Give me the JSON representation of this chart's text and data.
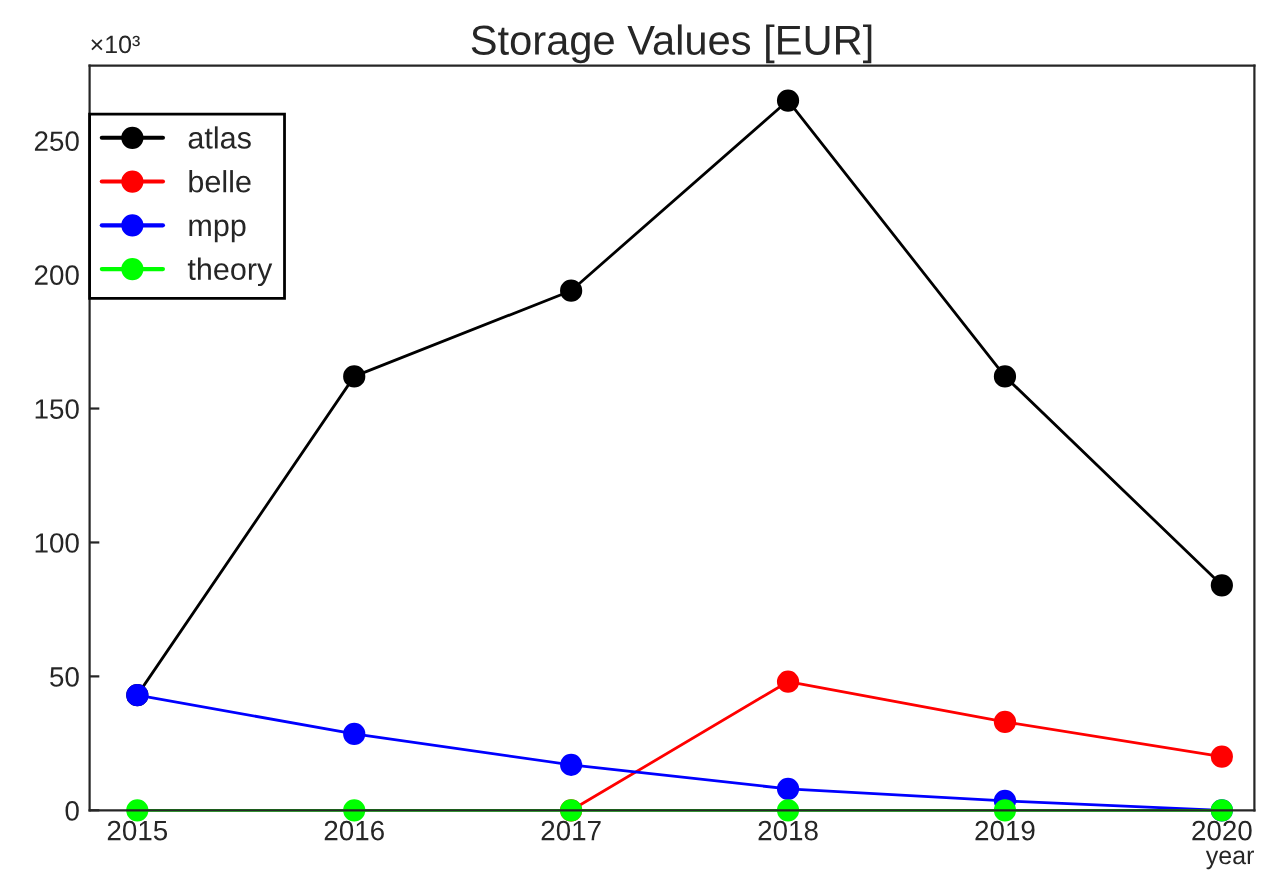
{
  "chart_data": {
    "type": "line",
    "title": "Storage Values [EUR]",
    "xlabel": "year",
    "annotations": [
      "×10³"
    ],
    "x": [
      2015,
      2016,
      2017,
      2018,
      2019,
      2020
    ],
    "series": [
      {
        "name": "atlas",
        "color": "#000000",
        "values": [
          43,
          162,
          194,
          265,
          162,
          84
        ]
      },
      {
        "name": "belle",
        "color": "#ff0000",
        "values": [
          null,
          null,
          0,
          48,
          33,
          20
        ]
      },
      {
        "name": "mpp",
        "color": "#0000ff",
        "values": [
          43,
          28.5,
          17,
          8,
          3.5,
          0
        ]
      },
      {
        "name": "theory",
        "color": "#00ff00",
        "values": [
          0,
          0,
          0,
          0,
          0,
          0
        ]
      }
    ],
    "xlim": [
      2014.78,
      2020.15
    ],
    "xticks": [
      2015,
      2016,
      2017,
      2018,
      2019,
      2020
    ],
    "ylim": [
      0,
      278
    ],
    "yticks": [
      0,
      50,
      100,
      150,
      200,
      250
    ],
    "grid": false,
    "legend": "top left",
    "marker": "circle",
    "line_style": "solid"
  }
}
